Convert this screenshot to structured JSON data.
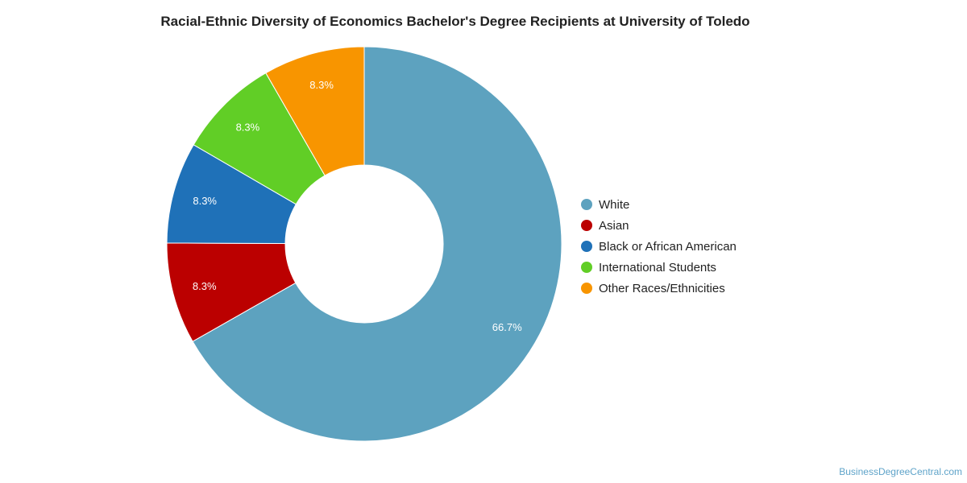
{
  "chart_data": {
    "type": "pie",
    "title": "Racial-Ethnic Diversity of Economics Bachelor's Degree Recipients at University of Toledo",
    "donut": true,
    "legend_position": "right",
    "slices": [
      {
        "name": "White",
        "value": 66.7,
        "label": "66.7%",
        "color": "#5da2bf"
      },
      {
        "name": "Asian",
        "value": 8.3,
        "label": "8.3%",
        "color": "#bb0000"
      },
      {
        "name": "Black or African American",
        "value": 8.3,
        "label": "8.3%",
        "color": "#1f71b8"
      },
      {
        "name": "International Students",
        "value": 8.3,
        "label": "8.3%",
        "color": "#61ce26"
      },
      {
        "name": "Other Races/Ethnicities",
        "value": 8.3,
        "label": "8.3%",
        "color": "#f89500"
      }
    ]
  },
  "credit": "BusinessDegreeCentral.com"
}
